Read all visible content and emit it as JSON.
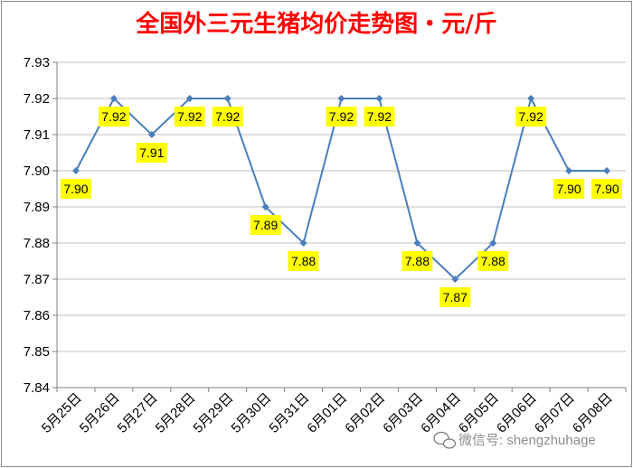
{
  "chart_data": {
    "type": "line",
    "title": "全国外三元生猪均价走势图・元/斤",
    "xlabel": "",
    "ylabel": "",
    "categories": [
      "5月25日",
      "5月26日",
      "5月27日",
      "5月28日",
      "5月29日",
      "5月30日",
      "5月31日",
      "6月01日",
      "6月02日",
      "6月03日",
      "6月04日",
      "6月05日",
      "6月06日",
      "6月07日",
      "6月08日"
    ],
    "series": [
      {
        "values": [
          7.9,
          7.92,
          7.91,
          7.92,
          7.92,
          7.89,
          7.88,
          7.92,
          7.92,
          7.88,
          7.87,
          7.88,
          7.92,
          7.9,
          7.9
        ]
      }
    ],
    "ylim": [
      7.84,
      7.93
    ],
    "yticks": [
      "7.84",
      "7.85",
      "7.86",
      "7.87",
      "7.88",
      "7.89",
      "7.90",
      "7.91",
      "7.92",
      "7.93"
    ],
    "grid": true,
    "legend": "none",
    "colors": {
      "line": "#4a7ebb",
      "label_bg": "#ffff00",
      "title": "#ff0000",
      "grid": "#bfbfbf"
    }
  },
  "watermark": {
    "text": "微信号: shengzhuhage",
    "icon": "wechat-icon"
  }
}
